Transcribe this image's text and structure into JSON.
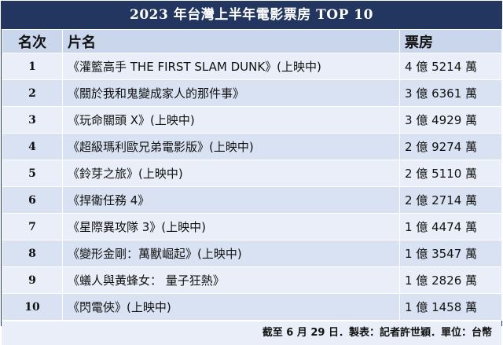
{
  "title": "2023 年台灣上半年電影票房 TOP 10",
  "headers": {
    "rank": "名次",
    "film": "片名",
    "box_office": "票房"
  },
  "rows": [
    {
      "rank": "1",
      "film": "《灌籃高手 THE FIRST SLAM DUNK》(上映中)",
      "box_office": "4 億 5214 萬"
    },
    {
      "rank": "2",
      "film": "《關於我和鬼變成家人的那件事》",
      "box_office": "3 億 6361 萬"
    },
    {
      "rank": "3",
      "film": "《玩命關頭 X》(上映中)",
      "box_office": "3 億 4929 萬"
    },
    {
      "rank": "4",
      "film": "《超級瑪利歐兄弟電影版》(上映中)",
      "box_office": "2 億 9274 萬"
    },
    {
      "rank": "5",
      "film": "《鈴芽之旅》(上映中)",
      "box_office": "2 億 5110 萬"
    },
    {
      "rank": "6",
      "film": "《捍衛任務 4》",
      "box_office": "2 億 2714 萬"
    },
    {
      "rank": "7",
      "film": "《星際異攻隊 3》(上映中)",
      "box_office": "1 億 4474 萬"
    },
    {
      "rank": "8",
      "film": "《變形金剛：萬獸崛起》(上映中)",
      "box_office": "1 億 3547 萬"
    },
    {
      "rank": "9",
      "film": "《蟻人與黃蜂女： 量子狂熱》",
      "box_office": "1 億 2826 萬"
    },
    {
      "rank": "10",
      "film": "《閃電俠》(上映中)",
      "box_office": "1 億 1458 萬"
    }
  ],
  "footer": "截至 6 月 29 日．製表：記者許世穎．單位：台幣",
  "colors": {
    "title_bg": "#22365f",
    "header_bg": "#c9d6ec",
    "row_light": "#e9eef8",
    "row_dark": "#d9e2f3"
  }
}
